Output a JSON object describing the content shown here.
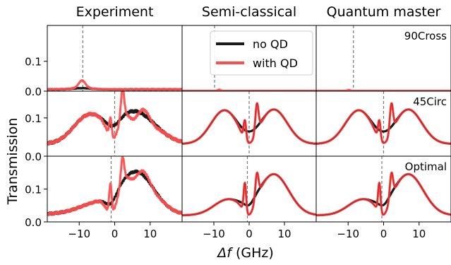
{
  "chart_data": {
    "type": "line",
    "grid_layout": {
      "rows": 3,
      "cols": 3
    },
    "column_titles": [
      "Experiment",
      "Semi-classical",
      "Quantum master"
    ],
    "row_labels": [
      "90Cross",
      "45Circ",
      "Optimal"
    ],
    "ylabel": "Transmission",
    "xlabel": "Δf (GHz)",
    "xlabel_parts": {
      "symbol": "Δf",
      "unit": "(GHz)"
    },
    "xlim": [
      -19,
      19
    ],
    "xticks": [
      -10,
      0,
      10
    ],
    "xtick_labels": [
      "−10",
      "0",
      "10"
    ],
    "rows": [
      {
        "ylim": [
          0,
          0.22
        ],
        "yticks": [
          0.0,
          0.1
        ],
        "ytick_labels": [
          "0.0",
          "0.1"
        ],
        "dashed_x": [
          -9,
          -9.8,
          -8.5
        ]
      },
      {
        "ylim": [
          0,
          0.17
        ],
        "yticks": [
          0.0,
          0.1
        ],
        "ytick_labels": [
          "0.0",
          "0.1"
        ],
        "dashed_x": [
          0,
          0,
          0
        ]
      },
      {
        "ylim": [
          0,
          0.2
        ],
        "yticks": [
          0.0,
          0.1
        ],
        "ytick_labels": [
          "0.0",
          "0.1"
        ],
        "dashed_x": [
          -1,
          -0.5,
          -0.5
        ]
      }
    ],
    "legend": {
      "placement": "top-right of top-middle panel",
      "entries": [
        "no QD",
        "with QD"
      ]
    },
    "series": [
      {
        "name": "no QD",
        "color": "#1a1a1a"
      },
      {
        "name": "with QD",
        "color": "#ff4d4d"
      }
    ],
    "dip_color": "#b30000",
    "dashed_line_color": "#777777"
  }
}
